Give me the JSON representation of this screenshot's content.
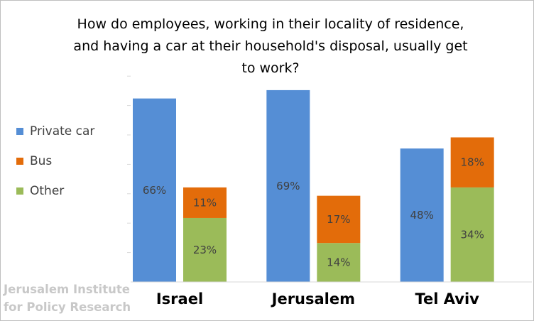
{
  "chart_data": {
    "type": "bar",
    "stacked_per_group": true,
    "title": "How do employees, working in their locality of residence, and having a car at their household's disposal, usually get to work?",
    "categories": [
      "Israel",
      "Jerusalem",
      "Tel Aviv"
    ],
    "series": [
      {
        "name": "Private car",
        "values": [
          66,
          69,
          48
        ],
        "labels": [
          "66%",
          "69%",
          "48%"
        ],
        "color": "#558ed5"
      },
      {
        "name": "Bus",
        "values": [
          11,
          17,
          18
        ],
        "labels": [
          "11%",
          "17%",
          "18%"
        ],
        "color": "#e36c0a"
      },
      {
        "name": "Other",
        "values": [
          23,
          14,
          34
        ],
        "labels": [
          "23%",
          "14%",
          "34%"
        ],
        "color": "#9bbb59"
      }
    ],
    "ylim": [
      0,
      70
    ],
    "gridlines": false,
    "legend_position": "left"
  },
  "watermark": {
    "line1": "Jerusalem Institute",
    "line2": "for Policy Research"
  }
}
